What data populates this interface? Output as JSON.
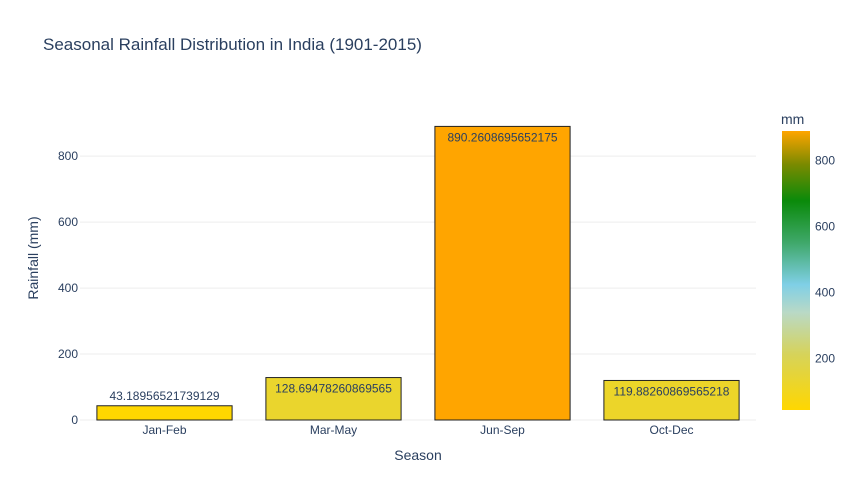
{
  "chart_data": {
    "type": "bar",
    "title": "Seasonal Rainfall Distribution in India (1901-2015)",
    "xlabel": "Season",
    "ylabel": "Rainfall (mm)",
    "categories": [
      "Jan-Feb",
      "Mar-May",
      "Jun-Sep",
      "Oct-Dec"
    ],
    "values": [
      43.18956521739129,
      128.69478260869565,
      890.2608695652175,
      119.88260869565218
    ],
    "value_labels": [
      "43.18956521739129",
      "128.69478260869565",
      "890.2608695652175",
      "119.88260869565218"
    ],
    "ylim": [
      0,
      940
    ],
    "yticks": [
      0,
      200,
      400,
      600,
      800
    ],
    "grid": true,
    "colorbar": {
      "title": "mm",
      "range": [
        43.18956521739129,
        890.2608695652175
      ],
      "ticks": [
        200,
        400,
        600,
        800
      ],
      "colorscale": [
        [
          0.0,
          "#FFD700"
        ],
        [
          0.2,
          "#D6D35A"
        ],
        [
          0.35,
          "#B9D9C6"
        ],
        [
          0.45,
          "#7FCFE6"
        ],
        [
          0.6,
          "#3FA86A"
        ],
        [
          0.75,
          "#0A8A0A"
        ],
        [
          0.88,
          "#7A8A00"
        ],
        [
          1.0,
          "#FFA500"
        ]
      ]
    }
  }
}
